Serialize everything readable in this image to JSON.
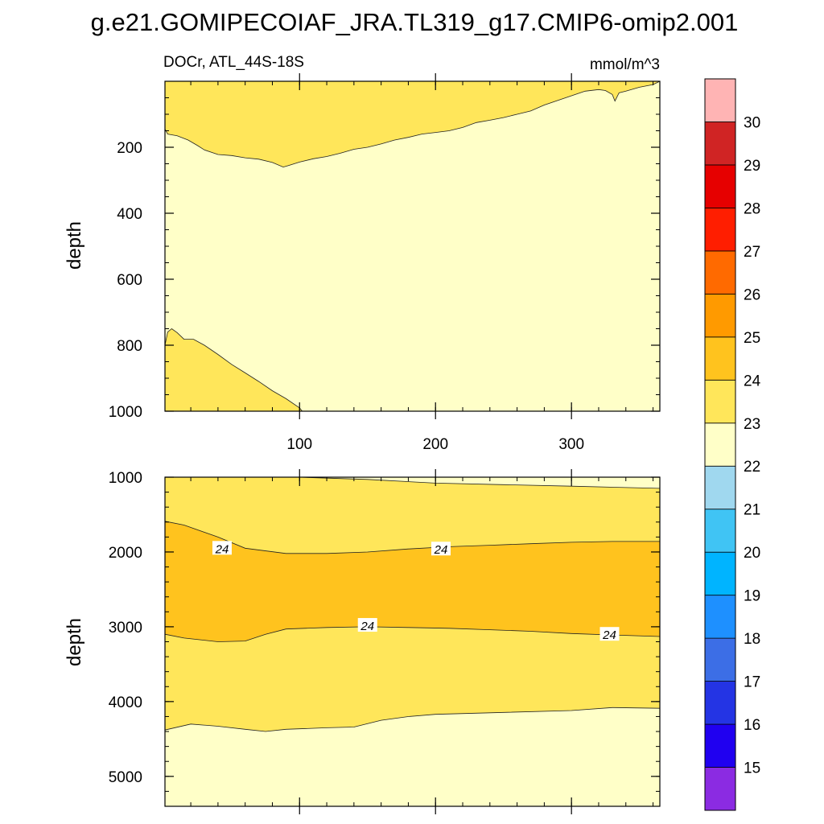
{
  "figure": {
    "title": "g.e21.GOMIPECOIAF_JRA.TL319_g17.CMIP6-omip2.001"
  },
  "chart_data": {
    "type": "contour",
    "left_label": "DOCr, ATL_44S-18S",
    "right_label": "mmol/m^3",
    "colorbar": {
      "levels": [
        15,
        16,
        17,
        18,
        19,
        20,
        21,
        22,
        23,
        24,
        25,
        26,
        27,
        28,
        29,
        30
      ],
      "colors": [
        "#8b2be2",
        "#2000f0",
        "#2434e4",
        "#3c6ee6",
        "#1e90ff",
        "#00b4ff",
        "#40c4f4",
        "#a0d8ef",
        "#ffffc8",
        "#ffe65a",
        "#ffc31e",
        "#ff9a00",
        "#ff6a00",
        "#ff1e00",
        "#e60000",
        "#d02424",
        "#ffb4b4"
      ]
    },
    "panels": [
      {
        "name": "upper",
        "ylabel": "depth",
        "xlim": [
          1,
          365
        ],
        "ylim": [
          0,
          1000
        ],
        "y_reversed": true,
        "xticks": [
          100,
          200,
          300
        ],
        "yticks": [
          200,
          400,
          600,
          800,
          1000
        ],
        "regions": [
          {
            "level": "23-24",
            "color": "#ffe65a",
            "upper_boundary": [
              [
                1,
                0
              ],
              [
                365,
                0
              ]
            ],
            "lower_boundary": [
              [
                1,
                145
              ],
              [
                3,
                160
              ],
              [
                10,
                165
              ],
              [
                18,
                178
              ],
              [
                25,
                195
              ],
              [
                30,
                208
              ],
              [
                40,
                222
              ],
              [
                50,
                225
              ],
              [
                60,
                232
              ],
              [
                70,
                236
              ],
              [
                80,
                246
              ],
              [
                88,
                260
              ],
              [
                92,
                255
              ],
              [
                100,
                245
              ],
              [
                110,
                235
              ],
              [
                120,
                228
              ],
              [
                130,
                218
              ],
              [
                140,
                206
              ],
              [
                150,
                200
              ],
              [
                160,
                190
              ],
              [
                170,
                178
              ],
              [
                180,
                170
              ],
              [
                190,
                160
              ],
              [
                200,
                155
              ],
              [
                210,
                150
              ],
              [
                220,
                140
              ],
              [
                230,
                125
              ],
              [
                240,
                118
              ],
              [
                250,
                110
              ],
              [
                260,
                100
              ],
              [
                270,
                90
              ],
              [
                280,
                72
              ],
              [
                290,
                58
              ],
              [
                300,
                44
              ],
              [
                310,
                30
              ],
              [
                320,
                25
              ],
              [
                325,
                28
              ],
              [
                330,
                40
              ],
              [
                332,
                60
              ],
              [
                335,
                35
              ],
              [
                340,
                30
              ],
              [
                350,
                18
              ],
              [
                360,
                10
              ],
              [
                365,
                0
              ]
            ]
          },
          {
            "level": "23-24",
            "color": "#ffe65a",
            "upper_boundary": [
              [
                1,
                800
              ],
              [
                3,
                760
              ],
              [
                6,
                750
              ],
              [
                10,
                762
              ],
              [
                15,
                782
              ],
              [
                22,
                782
              ],
              [
                30,
                800
              ],
              [
                40,
                828
              ],
              [
                50,
                858
              ],
              [
                60,
                884
              ],
              [
                70,
                910
              ],
              [
                80,
                938
              ],
              [
                90,
                962
              ],
              [
                100,
                990
              ],
              [
                102,
                1000
              ]
            ],
            "lower_boundary": [
              [
                1,
                1000
              ],
              [
                102,
                1000
              ]
            ]
          }
        ]
      },
      {
        "name": "lower",
        "ylabel": "depth",
        "xlim": [
          1,
          365
        ],
        "ylim": [
          1000,
          5400
        ],
        "y_reversed": true,
        "xticks": [
          100,
          200,
          300
        ],
        "yticks": [
          1000,
          2000,
          3000,
          4000,
          5000
        ],
        "contour_labels": [
          {
            "text": "24",
            "x": 43,
            "y": 1950
          },
          {
            "text": "24",
            "x": 204,
            "y": 1960
          },
          {
            "text": "24",
            "x": 150,
            "y": 2980
          },
          {
            "text": "24",
            "x": 328,
            "y": 3100
          }
        ],
        "regions": [
          {
            "level": "23-24",
            "color": "#ffe65a",
            "upper_boundary": [
              [
                1,
                1000
              ],
              [
                100,
                1000
              ],
              [
                150,
                1030
              ],
              [
                200,
                1080
              ],
              [
                250,
                1100
              ],
              [
                300,
                1120
              ],
              [
                365,
                1150
              ]
            ],
            "lower_boundary": [
              [
                1,
                4380
              ],
              [
                20,
                4300
              ],
              [
                40,
                4330
              ],
              [
                60,
                4370
              ],
              [
                75,
                4400
              ],
              [
                90,
                4370
              ],
              [
                120,
                4350
              ],
              [
                140,
                4340
              ],
              [
                160,
                4250
              ],
              [
                180,
                4200
              ],
              [
                200,
                4170
              ],
              [
                240,
                4150
              ],
              [
                300,
                4120
              ],
              [
                330,
                4080
              ],
              [
                365,
                4090
              ]
            ]
          },
          {
            "level": "24-25",
            "color": "#ffc31e",
            "upper_boundary": [
              [
                1,
                1590
              ],
              [
                15,
                1640
              ],
              [
                40,
                1800
              ],
              [
                60,
                1950
              ],
              [
                90,
                2020
              ],
              [
                120,
                2020
              ],
              [
                150,
                2000
              ],
              [
                180,
                1960
              ],
              [
                210,
                1930
              ],
              [
                240,
                1910
              ],
              [
                270,
                1890
              ],
              [
                300,
                1870
              ],
              [
                330,
                1860
              ],
              [
                365,
                1860
              ]
            ],
            "lower_boundary": [
              [
                1,
                3100
              ],
              [
                15,
                3150
              ],
              [
                40,
                3200
              ],
              [
                60,
                3190
              ],
              [
                75,
                3100
              ],
              [
                90,
                3030
              ],
              [
                120,
                3010
              ],
              [
                150,
                3000
              ],
              [
                180,
                3010
              ],
              [
                210,
                3020
              ],
              [
                240,
                3040
              ],
              [
                270,
                3060
              ],
              [
                300,
                3090
              ],
              [
                330,
                3110
              ],
              [
                365,
                3130
              ]
            ]
          }
        ]
      }
    ]
  }
}
